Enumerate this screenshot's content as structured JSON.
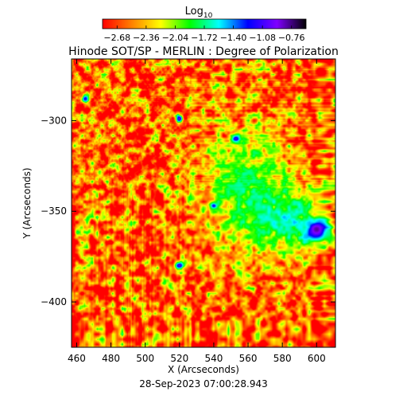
{
  "chart_data": {
    "type": "heatmap",
    "title": "Hinode SOT/SP - MERLIN : Degree of Polarization",
    "xlabel": "X (Arcseconds)",
    "ylabel": "Y (Arcseconds)",
    "timestamp": "28-Sep-2023 07:00:28.943",
    "colorbar": {
      "label_base": "Log",
      "label_sub": "10",
      "ticks": [
        -2.68,
        -2.36,
        -2.04,
        -1.72,
        -1.4,
        -1.08,
        -0.76
      ],
      "tick_labels": [
        "−2.68",
        "−2.36",
        "−2.04",
        "−1.72",
        "−1.40",
        "−1.08",
        "−0.76"
      ],
      "range": [
        -2.84,
        -0.6
      ],
      "colormap": [
        "#ff0000",
        "#ff8000",
        "#ffff00",
        "#00ff00",
        "#00ffff",
        "#0000ff",
        "#8000ff",
        "#000000"
      ]
    },
    "xlim": [
      457,
      611
    ],
    "ylim": [
      -425,
      -266
    ],
    "x_ticks": [
      460,
      480,
      500,
      520,
      540,
      560,
      580,
      600
    ],
    "x_tick_labels": [
      "460",
      "480",
      "500",
      "520",
      "540",
      "560",
      "580",
      "600"
    ],
    "y_ticks": [
      -300,
      -350,
      -400
    ],
    "y_tick_labels": [
      "−300",
      "−350",
      "−400"
    ],
    "features": [
      {
        "kind": "sunspot",
        "x": 600,
        "y": -360,
        "rx": 12,
        "ry": 10,
        "level": -0.8
      },
      {
        "kind": "pore",
        "x": 520,
        "y": -299,
        "rx": 3,
        "ry": 3,
        "level": -1.0
      },
      {
        "kind": "pore",
        "x": 553,
        "y": -310,
        "rx": 5,
        "ry": 4,
        "level": -1.1
      },
      {
        "kind": "pore",
        "x": 520,
        "y": -380,
        "rx": 4,
        "ry": 3,
        "level": -1.05
      },
      {
        "kind": "pore",
        "x": 465,
        "y": -288,
        "rx": 3,
        "ry": 3,
        "level": -1.2
      },
      {
        "kind": "pore",
        "x": 540,
        "y": -347,
        "rx": 4,
        "ry": 3,
        "level": -1.2
      },
      {
        "kind": "plage",
        "x": 560,
        "y": -340,
        "rx": 30,
        "ry": 40,
        "level": -1.65
      },
      {
        "kind": "plage",
        "x": 585,
        "y": -355,
        "rx": 22,
        "ry": 18,
        "level": -1.45
      }
    ]
  }
}
